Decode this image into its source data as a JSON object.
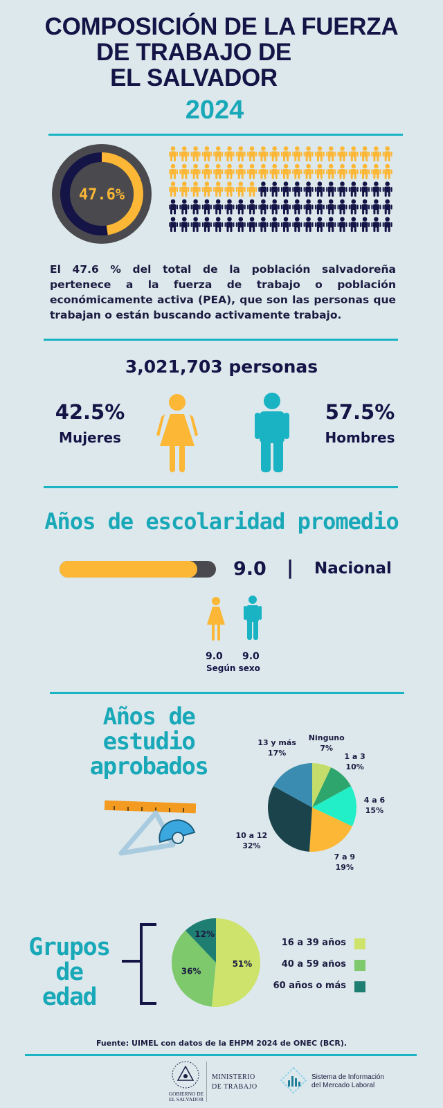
{
  "header": {
    "title_line1": "COMPOSICIÓN DE LA FUERZA",
    "title_line2": "DE TRABAJO DE",
    "title_line3": "EL SALVADOR",
    "year": "2024"
  },
  "pea": {
    "percent_label": "47.6%",
    "percent_value": 47.6,
    "pictogram_total": 100,
    "pictogram_highlighted": 48,
    "description": "El 47.6 % del total de la población salvadoreña pertenece a la fuerza de trabajo o población económicamente activa (PEA), que son las personas que trabajan o están buscando activamente trabajo."
  },
  "population": {
    "total": "3,021,703 personas",
    "women_percent": "42.5%",
    "women_label": "Mujeres",
    "men_percent": "57.5%",
    "men_label": "Hombres"
  },
  "schooling": {
    "title": "Años de escolaridad promedio",
    "national_value": "9.0",
    "separator": "|",
    "national_label": "Nacional",
    "bar_fill_fraction": 0.88,
    "women_value": "9.0",
    "men_value": "9.0",
    "by_sex_label": "Según sexo"
  },
  "study_years": {
    "title_line1": "Años de estudio",
    "title_line2": "aprobados"
  },
  "age_groups": {
    "title_line1": "Grupos de",
    "title_line2": "edad"
  },
  "footer": {
    "source": "Fuente: UIMEL con datos de la EHPM 2024 de ONEC (BCR).",
    "gov_line1": "GOBIERNO DE",
    "gov_line2": "EL SALVADOR",
    "ministry_line1": "MINISTERIO",
    "ministry_line2": "DE TRABAJO",
    "simel_line1": "Sistema de Información",
    "simel_line2": "del Mercado Laboral"
  },
  "colors": {
    "navy": "#141446",
    "teal": "#19a8b8",
    "yellow": "#fbb735",
    "bg": "#dde8ec"
  },
  "chart_data": [
    {
      "type": "pie",
      "title": "",
      "categories": [
        "Ninguno",
        "1 a 3",
        "4 a 6",
        "7 a 9",
        "10 a 12",
        "13 y más"
      ],
      "values": [
        7,
        10,
        15,
        19,
        32,
        17
      ],
      "labels": [
        "7%",
        "10%",
        "15%",
        "19%",
        "32%",
        "17%"
      ],
      "colors": [
        "#c4dd6a",
        "#2ea56c",
        "#22eec7",
        "#fbb735",
        "#1b434c",
        "#3a8db0"
      ]
    },
    {
      "type": "pie",
      "title": "",
      "categories": [
        "16 a 39 años",
        "40 a 59 años",
        "60 años o más"
      ],
      "values": [
        51,
        36,
        12
      ],
      "labels": [
        "51%",
        "36%",
        "12%"
      ],
      "colors": [
        "#cde36c",
        "#7dc96b",
        "#1f7e72"
      ],
      "legend": "right"
    }
  ]
}
